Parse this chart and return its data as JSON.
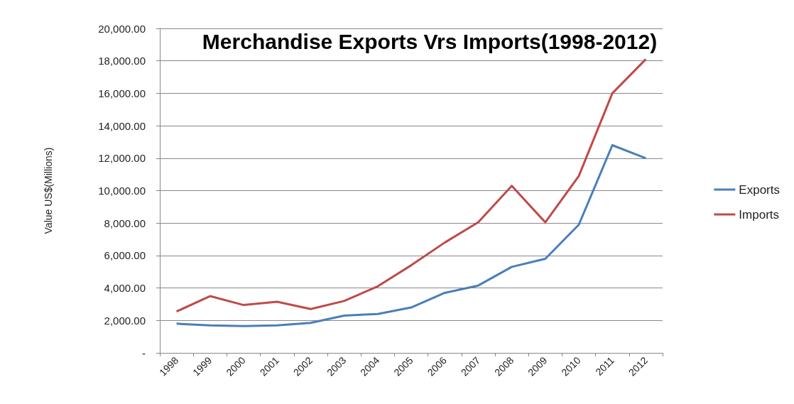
{
  "chart_data": {
    "type": "line",
    "title": "Merchandise Exports Vrs Imports(1998-2012)",
    "ylabel": "Value US$(Millions)",
    "categories": [
      "1998",
      "1999",
      "2000",
      "2001",
      "2002",
      "2003",
      "2004",
      "2005",
      "2006",
      "2007",
      "2008",
      "2009",
      "2010",
      "2011",
      "2012"
    ],
    "series": [
      {
        "name": "Exports",
        "color": "#4a7ebb",
        "values": [
          1800,
          1700,
          1650,
          1700,
          1850,
          2300,
          2400,
          2800,
          3700,
          4150,
          5300,
          5800,
          7900,
          12800,
          12000
        ]
      },
      {
        "name": "Imports",
        "color": "#be4b48",
        "values": [
          2550,
          3500,
          2950,
          3150,
          2700,
          3200,
          4100,
          5400,
          6800,
          8050,
          10300,
          8050,
          10900,
          16000,
          18100
        ]
      }
    ],
    "ylim": [
      0,
      20000
    ],
    "yticks": [
      {
        "value": 0,
        "label": "-"
      },
      {
        "value": 2000,
        "label": "2,000.00"
      },
      {
        "value": 4000,
        "label": "4,000.00"
      },
      {
        "value": 6000,
        "label": "6,000.00"
      },
      {
        "value": 8000,
        "label": "8,000.00"
      },
      {
        "value": 10000,
        "label": "10,000.00"
      },
      {
        "value": 12000,
        "label": "12,000.00"
      },
      {
        "value": 14000,
        "label": "14,000.00"
      },
      {
        "value": 16000,
        "label": "16,000.00"
      },
      {
        "value": 18000,
        "label": "18,000.00"
      },
      {
        "value": 20000,
        "label": "20,000.00"
      }
    ],
    "grid": "y",
    "legend": "right",
    "marker": "none",
    "line_style": "solid"
  }
}
